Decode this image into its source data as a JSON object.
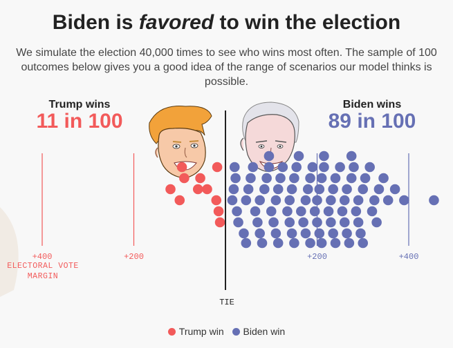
{
  "header": {
    "title_before": "Biden is ",
    "title_emph": "favored",
    "title_after": " to win the election",
    "subtitle": "We simulate the election 40,000 times to see who wins most often. The sample of 100 outcomes below gives you a good idea of the range of scenarios our model thinks is possible."
  },
  "trump": {
    "label": "Trump wins",
    "count": "11 in 100"
  },
  "biden": {
    "label": "Biden wins",
    "count": "89 in 100"
  },
  "colors": {
    "trump": "#f25a5a",
    "biden": "#6670b4",
    "tie_line": "#222222",
    "background": "#f8f8f8",
    "trump_hair": "#f2a23a",
    "face_skin": "#f7c9a8"
  },
  "illustrations": {
    "trump": "trump-caricature",
    "biden": "biden-caricature"
  },
  "chart_data": {
    "type": "scatter",
    "title": "",
    "xlabel": "ELECTORAL VOTE MARGIN",
    "ylabel": "",
    "xlim": [
      -490,
      460
    ],
    "x_ticks": [
      {
        "value": -400,
        "label": "+400",
        "side": "trump"
      },
      {
        "value": -200,
        "label": "+200",
        "side": "trump"
      },
      {
        "value": 200,
        "label": "+200",
        "side": "biden"
      },
      {
        "value": 400,
        "label": "+400",
        "side": "biden"
      }
    ],
    "tie": {
      "value": 0,
      "label": "TIE"
    },
    "series": [
      {
        "name": "Trump win",
        "color": "#f25a5a",
        "points": [
          {
            "x": -120,
            "y": 1
          },
          {
            "x": -90,
            "y": 2
          },
          {
            "x": -55,
            "y": 2
          },
          {
            "x": -40,
            "y": 1
          },
          {
            "x": -20,
            "y": 0
          },
          {
            "x": -18,
            "y": 3
          },
          {
            "x": -15,
            "y": 4
          },
          {
            "x": -12,
            "y": 5
          },
          {
            "x": -100,
            "y": 0
          },
          {
            "x": -60,
            "y": 1
          },
          {
            "x": -95,
            "y": 3
          }
        ]
      },
      {
        "name": "Biden win",
        "color": "#6670b4",
        "points": [
          {
            "x": 15,
            "y": 0
          },
          {
            "x": 18,
            "y": 1
          },
          {
            "x": 22,
            "y": 2
          },
          {
            "x": 20,
            "y": 3
          },
          {
            "x": 25,
            "y": 4
          },
          {
            "x": 28,
            "y": 5
          },
          {
            "x": 40,
            "y": 6
          },
          {
            "x": 45,
            "y": 7
          },
          {
            "x": 45,
            "y": 0
          },
          {
            "x": 50,
            "y": 1
          },
          {
            "x": 55,
            "y": 2
          },
          {
            "x": 60,
            "y": 3
          },
          {
            "x": 65,
            "y": 4
          },
          {
            "x": 70,
            "y": 5
          },
          {
            "x": 75,
            "y": 6
          },
          {
            "x": 80,
            "y": 7
          },
          {
            "x": 95,
            "y": 8
          },
          {
            "x": 75,
            "y": 0
          },
          {
            "x": 85,
            "y": 1
          },
          {
            "x": 90,
            "y": 2
          },
          {
            "x": 95,
            "y": 3
          },
          {
            "x": 100,
            "y": 4
          },
          {
            "x": 105,
            "y": 5
          },
          {
            "x": 110,
            "y": 6
          },
          {
            "x": 115,
            "y": 7
          },
          {
            "x": 110,
            "y": 0
          },
          {
            "x": 115,
            "y": 1
          },
          {
            "x": 120,
            "y": 2
          },
          {
            "x": 125,
            "y": 3
          },
          {
            "x": 135,
            "y": 4
          },
          {
            "x": 140,
            "y": 5
          },
          {
            "x": 145,
            "y": 6
          },
          {
            "x": 150,
            "y": 7
          },
          {
            "x": 140,
            "y": 0
          },
          {
            "x": 145,
            "y": 1
          },
          {
            "x": 150,
            "y": 2
          },
          {
            "x": 155,
            "y": 3
          },
          {
            "x": 165,
            "y": 4
          },
          {
            "x": 170,
            "y": 5
          },
          {
            "x": 175,
            "y": 6
          },
          {
            "x": 185,
            "y": 7
          },
          {
            "x": 175,
            "y": 0
          },
          {
            "x": 180,
            "y": 1
          },
          {
            "x": 185,
            "y": 2
          },
          {
            "x": 190,
            "y": 3
          },
          {
            "x": 195,
            "y": 4
          },
          {
            "x": 200,
            "y": 5
          },
          {
            "x": 205,
            "y": 6
          },
          {
            "x": 210,
            "y": 7
          },
          {
            "x": 215,
            "y": 8
          },
          {
            "x": 200,
            "y": 0
          },
          {
            "x": 205,
            "y": 1
          },
          {
            "x": 210,
            "y": 2
          },
          {
            "x": 215,
            "y": 3
          },
          {
            "x": 225,
            "y": 4
          },
          {
            "x": 230,
            "y": 5
          },
          {
            "x": 235,
            "y": 6
          },
          {
            "x": 240,
            "y": 7
          },
          {
            "x": 230,
            "y": 0
          },
          {
            "x": 235,
            "y": 1
          },
          {
            "x": 240,
            "y": 2
          },
          {
            "x": 250,
            "y": 3
          },
          {
            "x": 255,
            "y": 4
          },
          {
            "x": 260,
            "y": 5
          },
          {
            "x": 265,
            "y": 6
          },
          {
            "x": 270,
            "y": 7
          },
          {
            "x": 275,
            "y": 8
          },
          {
            "x": 260,
            "y": 0
          },
          {
            "x": 265,
            "y": 1
          },
          {
            "x": 275,
            "y": 2
          },
          {
            "x": 280,
            "y": 3
          },
          {
            "x": 285,
            "y": 4
          },
          {
            "x": 290,
            "y": 5
          },
          {
            "x": 295,
            "y": 6
          },
          {
            "x": 300,
            "y": 7
          },
          {
            "x": 290,
            "y": 0
          },
          {
            "x": 300,
            "y": 1
          },
          {
            "x": 305,
            "y": 2
          },
          {
            "x": 315,
            "y": 3
          },
          {
            "x": 320,
            "y": 4
          },
          {
            "x": 330,
            "y": 5
          },
          {
            "x": 325,
            "y": 0
          },
          {
            "x": 335,
            "y": 1
          },
          {
            "x": 345,
            "y": 2
          },
          {
            "x": 355,
            "y": 0
          },
          {
            "x": 370,
            "y": 1
          },
          {
            "x": 390,
            "y": 0
          },
          {
            "x": 455,
            "y": 0
          },
          {
            "x": 160,
            "y": 8
          }
        ]
      }
    ],
    "legend": {
      "position": "bottom-center",
      "items": [
        "Trump win",
        "Biden win"
      ]
    }
  }
}
